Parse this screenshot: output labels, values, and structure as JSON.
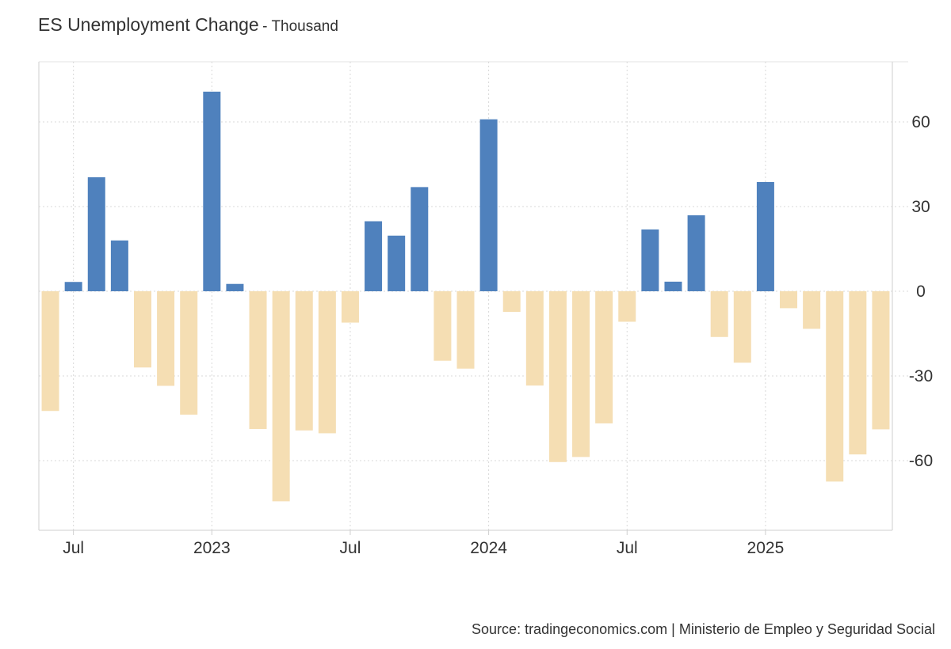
{
  "chart_data": {
    "type": "bar",
    "title": "ES Unemployment Change",
    "unit": "Thousand",
    "source": "Source: tradingeconomics.com | Ministerio de Empleo y Seguridad Social",
    "categories": [
      "2022-06",
      "2022-07",
      "2022-08",
      "2022-09",
      "2022-10",
      "2022-11",
      "2022-12",
      "2023-01",
      "2023-02",
      "2023-03",
      "2023-04",
      "2023-05",
      "2023-06",
      "2023-07",
      "2023-08",
      "2023-09",
      "2023-10",
      "2023-11",
      "2023-12",
      "2024-01",
      "2024-02",
      "2024-03",
      "2024-04",
      "2024-05",
      "2024-06",
      "2024-07",
      "2024-08",
      "2024-09",
      "2024-10",
      "2024-11",
      "2024-12",
      "2025-01",
      "2025-02",
      "2025-03",
      "2025-04",
      "2025-05",
      "2025-06"
    ],
    "values": [
      -42.4,
      3.3,
      40.4,
      18.0,
      -27.0,
      -33.5,
      -43.7,
      70.7,
      2.6,
      -48.8,
      -74.4,
      -49.3,
      -50.3,
      -11.1,
      24.8,
      19.7,
      36.9,
      -24.6,
      -27.4,
      60.9,
      -7.3,
      -33.4,
      -60.5,
      -58.7,
      -46.8,
      -10.8,
      21.9,
      3.4,
      26.9,
      -16.2,
      -25.3,
      38.7,
      -6.0,
      -13.3,
      -67.4,
      -57.8,
      -48.9
    ],
    "positive_color": "#4f81bd",
    "negative_color": "#f5deb3",
    "ylim": [
      -85,
      81
    ],
    "yticks": [
      -60,
      -30,
      0,
      30,
      60
    ],
    "ytick_labels": [
      "-60",
      "-30",
      "0",
      "30",
      "60"
    ],
    "xticks": [
      {
        "category": "2022-07",
        "label": "Jul"
      },
      {
        "category": "2023-01",
        "label": "2023"
      },
      {
        "category": "2023-07",
        "label": "Jul"
      },
      {
        "category": "2024-01",
        "label": "2024"
      },
      {
        "category": "2024-07",
        "label": "Jul"
      },
      {
        "category": "2025-01",
        "label": "2025"
      }
    ],
    "grid": true
  }
}
